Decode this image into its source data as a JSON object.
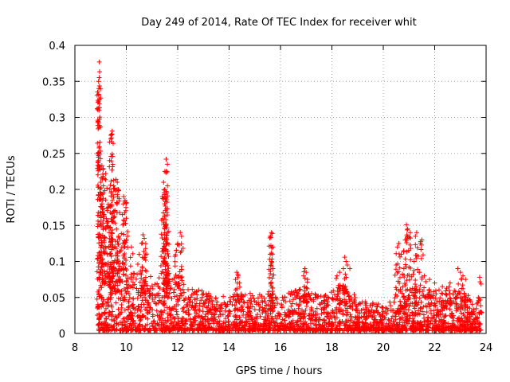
{
  "chart_data": {
    "type": "scatter",
    "title": "Day 249 of 2014, Rate Of TEC Index for receiver whit",
    "xlabel": "GPS time / hours",
    "ylabel": "ROTI / TECUs",
    "xlim": [
      8,
      24
    ],
    "ylim": [
      0,
      0.4
    ],
    "xticks": [
      8,
      10,
      12,
      14,
      16,
      18,
      20,
      22,
      24
    ],
    "yticks": [
      0,
      0.05,
      0.1,
      0.15,
      0.2,
      0.25,
      0.3,
      0.35,
      0.4
    ],
    "grid": true,
    "marker": "+",
    "color": "#ff0000",
    "series": [
      {
        "name": "ROTI",
        "points": [
          [
            8.95,
            0.377
          ],
          [
            8.92,
            0.35
          ],
          [
            8.93,
            0.34
          ],
          [
            8.92,
            0.332
          ],
          [
            9.45,
            0.281
          ],
          [
            9.42,
            0.276
          ],
          [
            9.4,
            0.27
          ],
          [
            9.45,
            0.249
          ],
          [
            9.35,
            0.24
          ],
          [
            9.05,
            0.233
          ],
          [
            9.1,
            0.229
          ],
          [
            9.2,
            0.222
          ],
          [
            9.15,
            0.215
          ],
          [
            9.0,
            0.21
          ],
          [
            9.6,
            0.214
          ],
          [
            9.65,
            0.21
          ],
          [
            9.5,
            0.205
          ],
          [
            9.7,
            0.198
          ],
          [
            9.9,
            0.19
          ],
          [
            9.95,
            0.185
          ],
          [
            9.1,
            0.195
          ],
          [
            9.05,
            0.18
          ],
          [
            9.3,
            0.175
          ],
          [
            9.55,
            0.17
          ],
          [
            9.85,
            0.165
          ],
          [
            10.0,
            0.16
          ],
          [
            8.98,
            0.15
          ],
          [
            9.2,
            0.145
          ],
          [
            9.4,
            0.14
          ],
          [
            9.7,
            0.135
          ],
          [
            10.0,
            0.13
          ],
          [
            10.2,
            0.12
          ],
          [
            11.55,
            0.242
          ],
          [
            11.6,
            0.235
          ],
          [
            11.5,
            0.225
          ],
          [
            11.45,
            0.21
          ],
          [
            11.5,
            0.2
          ],
          [
            11.4,
            0.19
          ],
          [
            11.6,
            0.205
          ],
          [
            11.55,
            0.15
          ],
          [
            11.5,
            0.145
          ],
          [
            11.6,
            0.14
          ],
          [
            11.5,
            0.13
          ],
          [
            12.1,
            0.14
          ],
          [
            12.15,
            0.135
          ],
          [
            12.0,
            0.125
          ],
          [
            11.95,
            0.115
          ],
          [
            10.65,
            0.137
          ],
          [
            10.7,
            0.132
          ],
          [
            10.6,
            0.125
          ],
          [
            10.75,
            0.118
          ],
          [
            10.5,
            0.11
          ],
          [
            15.65,
            0.14
          ],
          [
            15.6,
            0.135
          ],
          [
            15.7,
            0.12
          ],
          [
            15.6,
            0.11
          ],
          [
            15.65,
            0.1
          ],
          [
            15.7,
            0.09
          ],
          [
            16.95,
            0.09
          ],
          [
            17.0,
            0.085
          ],
          [
            16.9,
            0.08
          ],
          [
            17.05,
            0.075
          ],
          [
            18.5,
            0.106
          ],
          [
            18.55,
            0.1
          ],
          [
            18.6,
            0.095
          ],
          [
            18.45,
            0.09
          ],
          [
            18.3,
            0.085
          ],
          [
            18.2,
            0.08
          ],
          [
            18.7,
            0.09
          ],
          [
            14.3,
            0.085
          ],
          [
            14.35,
            0.08
          ],
          [
            14.25,
            0.075
          ],
          [
            14.4,
            0.07
          ],
          [
            20.9,
            0.151
          ],
          [
            20.95,
            0.145
          ],
          [
            21.05,
            0.14
          ],
          [
            20.85,
            0.13
          ],
          [
            20.6,
            0.125
          ],
          [
            20.55,
            0.12
          ],
          [
            21.3,
            0.14
          ],
          [
            21.25,
            0.135
          ],
          [
            21.5,
            0.13
          ],
          [
            21.0,
            0.115
          ],
          [
            20.7,
            0.11
          ],
          [
            21.2,
            0.1
          ],
          [
            20.5,
            0.095
          ],
          [
            20.8,
            0.09
          ],
          [
            21.4,
            0.085
          ],
          [
            21.6,
            0.08
          ],
          [
            21.8,
            0.075
          ],
          [
            22.0,
            0.07
          ],
          [
            22.3,
            0.065
          ],
          [
            22.6,
            0.07
          ],
          [
            22.9,
            0.09
          ],
          [
            23.0,
            0.085
          ],
          [
            23.1,
            0.08
          ],
          [
            23.2,
            0.075
          ],
          [
            23.75,
            0.078
          ],
          [
            23.7,
            0.05
          ],
          [
            23.8,
            0.03
          ],
          [
            23.65,
            0.02
          ]
        ],
        "dense_band": {
          "x_range": [
            8.9,
            23.8
          ],
          "envelope": [
            [
              9.0,
              0.12
            ],
            [
              9.5,
              0.1
            ],
            [
              10.0,
              0.09
            ],
            [
              10.5,
              0.08
            ],
            [
              11.0,
              0.075
            ],
            [
              11.5,
              0.085
            ],
            [
              12.0,
              0.07
            ],
            [
              12.5,
              0.06
            ],
            [
              13.0,
              0.055
            ],
            [
              13.5,
              0.05
            ],
            [
              14.0,
              0.05
            ],
            [
              14.5,
              0.055
            ],
            [
              15.0,
              0.05
            ],
            [
              15.5,
              0.055
            ],
            [
              16.0,
              0.05
            ],
            [
              16.5,
              0.055
            ],
            [
              17.0,
              0.06
            ],
            [
              17.5,
              0.05
            ],
            [
              18.0,
              0.055
            ],
            [
              18.5,
              0.065
            ],
            [
              19.0,
              0.045
            ],
            [
              19.5,
              0.04
            ],
            [
              20.0,
              0.035
            ],
            [
              20.5,
              0.045
            ],
            [
              21.0,
              0.06
            ],
            [
              21.5,
              0.06
            ],
            [
              22.0,
              0.055
            ],
            [
              22.5,
              0.06
            ],
            [
              23.0,
              0.065
            ],
            [
              23.5,
              0.04
            ]
          ]
        }
      }
    ]
  }
}
